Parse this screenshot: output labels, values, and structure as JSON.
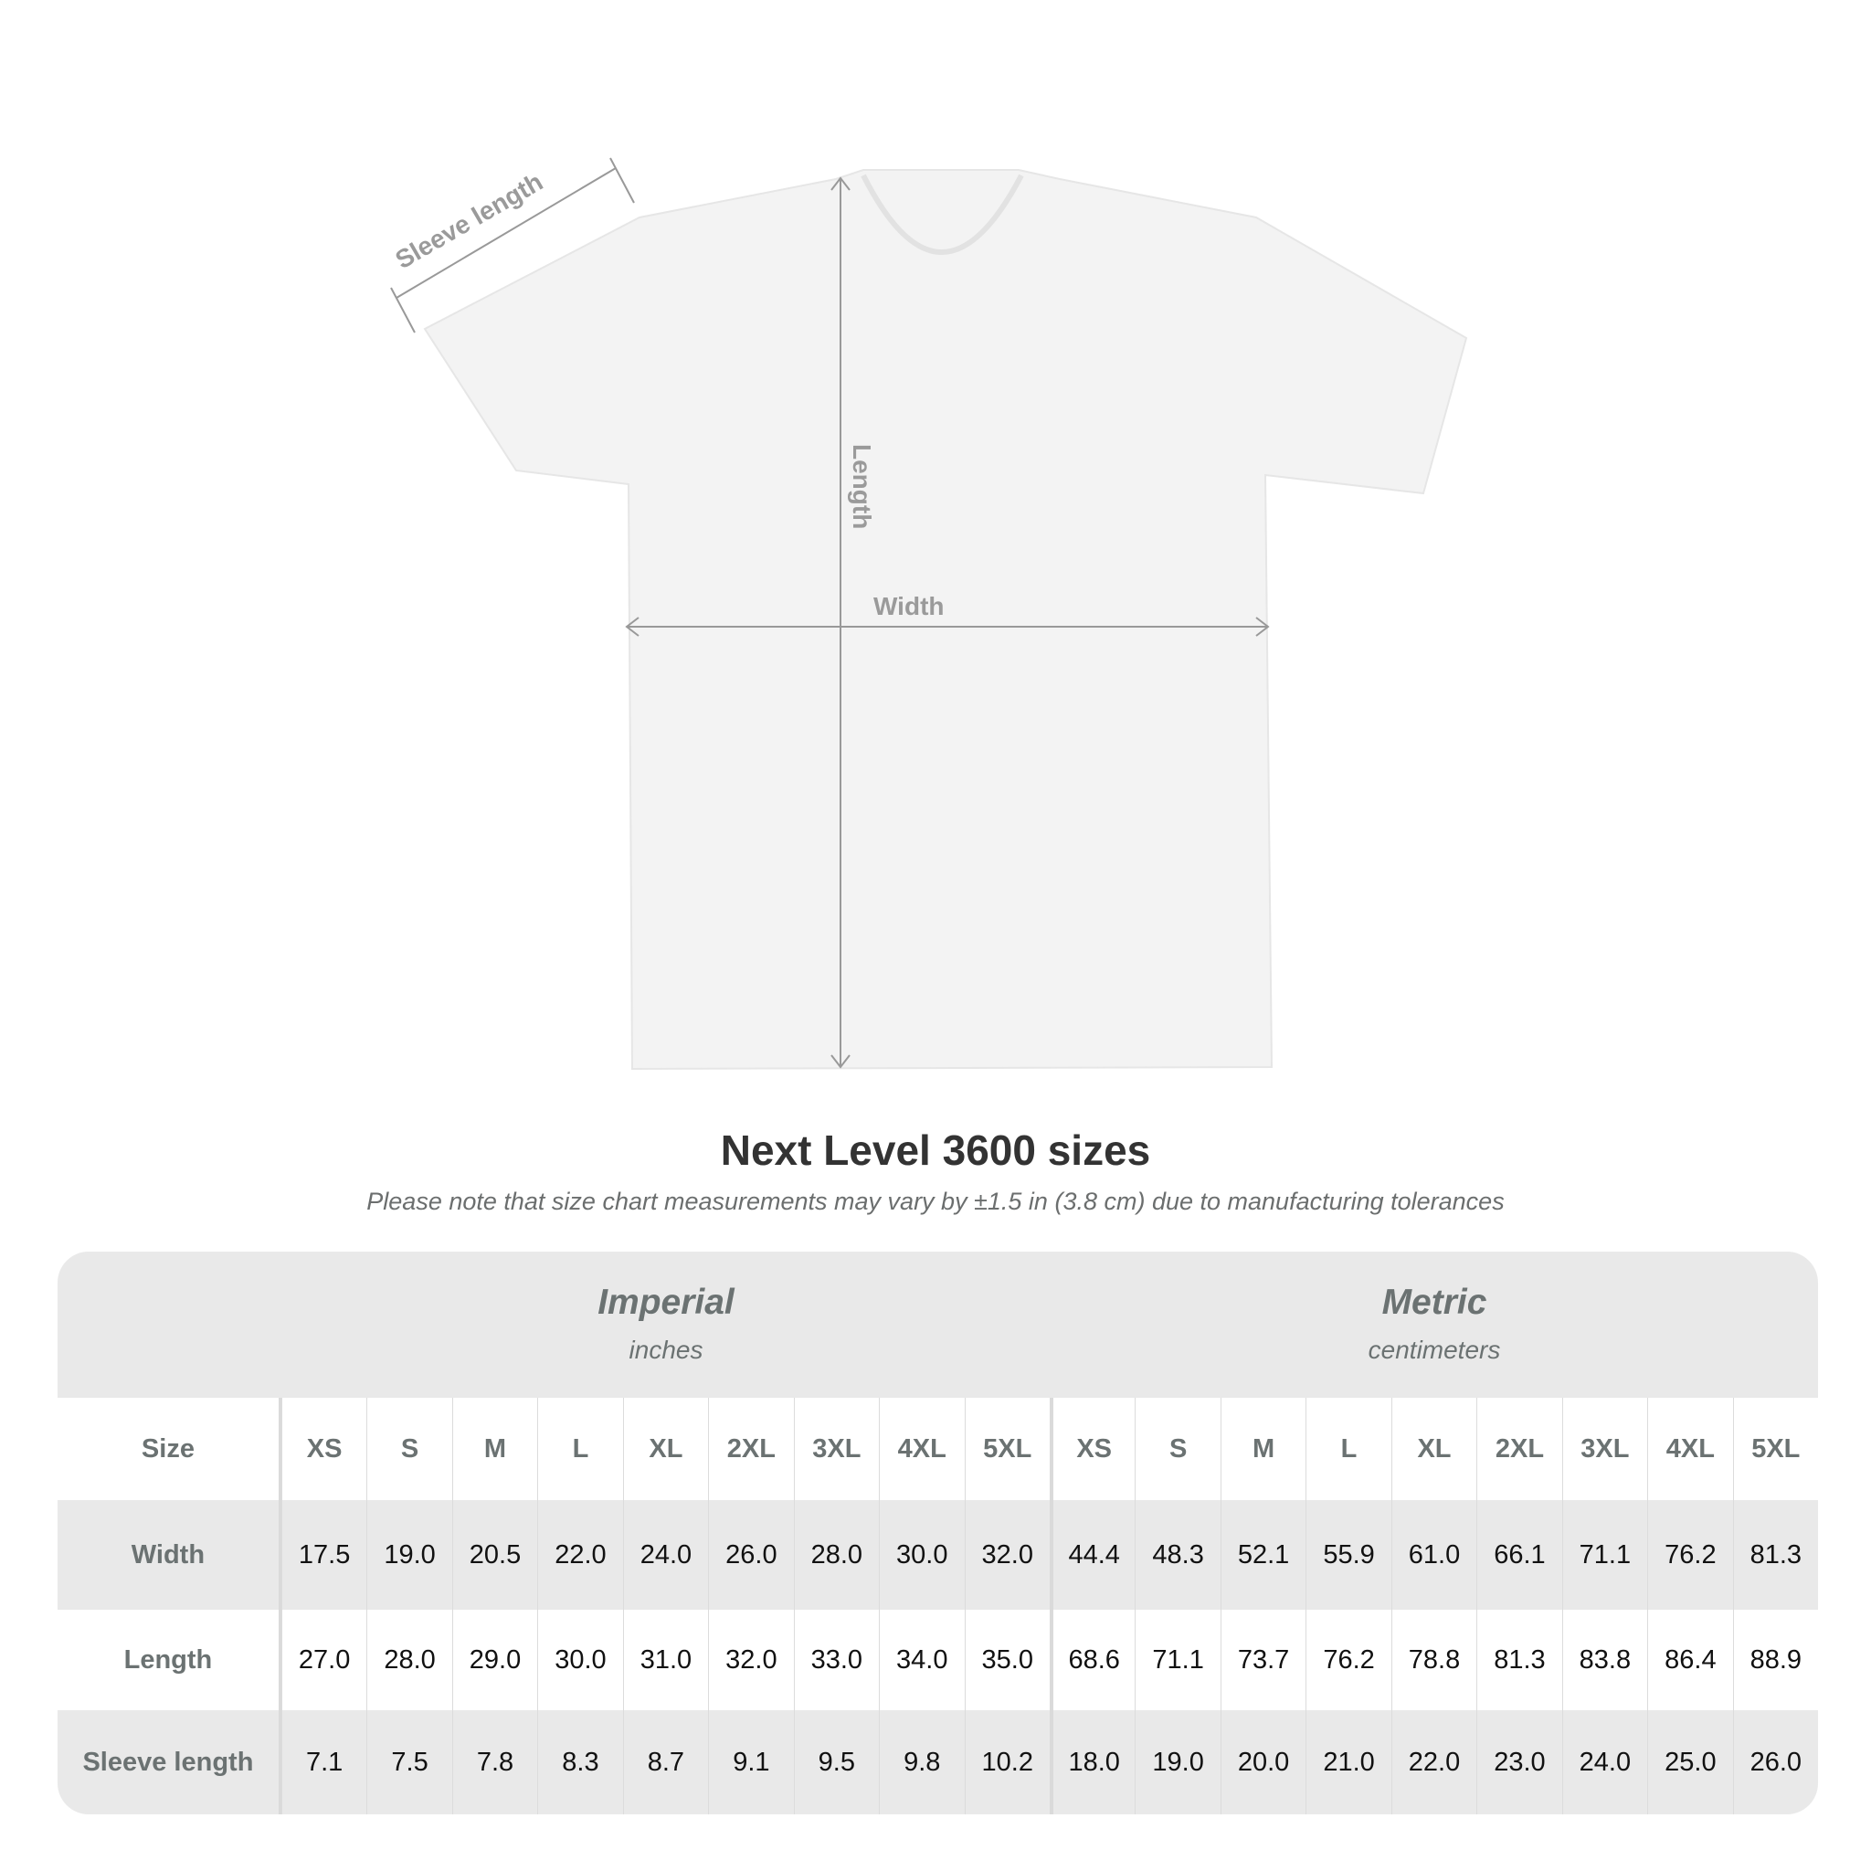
{
  "diagram": {
    "sleeve_label": "Sleeve length",
    "length_label": "Length",
    "width_label": "Width",
    "shirt_color": "#f4f4f4",
    "line_color": "#999999"
  },
  "title": "Next Level 3600 sizes",
  "note": "Please note that size chart measurements may vary by ±1.5 in (3.8 cm) due to manufacturing tolerances",
  "table": {
    "imperial": {
      "name": "Imperial",
      "unit": "inches"
    },
    "metric": {
      "name": "Metric",
      "unit": "centimeters"
    },
    "size_label": "Size",
    "sizes": [
      "XS",
      "S",
      "M",
      "L",
      "XL",
      "2XL",
      "3XL",
      "4XL",
      "5XL"
    ],
    "rows": [
      {
        "label": "Width",
        "imperial": [
          "17.5",
          "19.0",
          "20.5",
          "22.0",
          "24.0",
          "26.0",
          "28.0",
          "30.0",
          "32.0"
        ],
        "metric": [
          "44.4",
          "48.3",
          "52.1",
          "55.9",
          "61.0",
          "66.1",
          "71.1",
          "76.2",
          "81.3"
        ]
      },
      {
        "label": "Length",
        "imperial": [
          "27.0",
          "28.0",
          "29.0",
          "30.0",
          "31.0",
          "32.0",
          "33.0",
          "34.0",
          "35.0"
        ],
        "metric": [
          "68.6",
          "71.1",
          "73.7",
          "76.2",
          "78.8",
          "81.3",
          "83.8",
          "86.4",
          "88.9"
        ]
      },
      {
        "label": "Sleeve length",
        "imperial": [
          "7.1",
          "7.5",
          "7.8",
          "8.3",
          "8.7",
          "9.1",
          "9.5",
          "9.8",
          "10.2"
        ],
        "metric": [
          "18.0",
          "19.0",
          "20.0",
          "21.0",
          "22.0",
          "23.0",
          "24.0",
          "25.0",
          "26.0"
        ]
      }
    ]
  }
}
